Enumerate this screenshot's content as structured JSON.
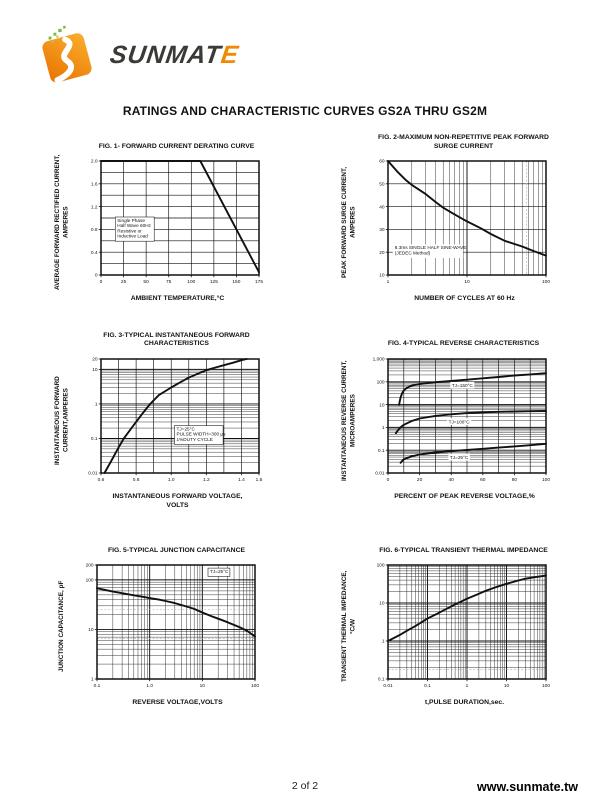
{
  "page": {
    "title": "RATINGS AND CHARACTERISTIC CURVES GS2A THRU GS2M",
    "page_number": "2 of 2",
    "website": "www.sunmate.tw"
  },
  "logo": {
    "brand_dark": "SUNMAT",
    "brand_accent": "E"
  },
  "colors": {
    "ink": "#111111",
    "logo_orange": "#F6941D",
    "logo_orange_dark": "#E87200",
    "logo_green": "#7DB93C",
    "logo_text": "#3B3A35",
    "wordmark_accent": "#F08A00"
  },
  "chart_data": [
    {
      "type": "line",
      "title": "FIG. 1- FORWARD CURRENT DERATING CURVE",
      "xlabel": "AMBIENT TEMPERATURE,°C",
      "ylabel": "AVERAGE FORWARD RECTIFIED CURRENT,\nAMPERES",
      "xscale": "linear",
      "yscale": "linear",
      "xlim": [
        0,
        175
      ],
      "ylim": [
        0,
        2
      ],
      "xstep": 25,
      "ystep": 0.2,
      "xticks": {
        "values": [
          0,
          25,
          50,
          75,
          100,
          125,
          150,
          175
        ],
        "labels": [
          "0",
          "25",
          "50",
          "75",
          "100",
          "125",
          "150",
          "175"
        ]
      },
      "yticks": {
        "values": [
          0,
          0.4,
          0.8,
          1.2,
          1.6,
          2.0
        ],
        "labels": [
          "0",
          "0.4",
          "0.8",
          "1.2",
          "1.6",
          "2.0"
        ]
      },
      "series": [
        {
          "name": "derating-curve",
          "points": [
            [
              0,
              2
            ],
            [
              110,
              2
            ],
            [
              175,
              0.05
            ]
          ]
        }
      ],
      "annotations": [
        {
          "x": 18,
          "y": 1.0,
          "boxed": true,
          "lines": [
            "Single Phase",
            "Half Wave 60Hz",
            "Resistive or",
            "Inductive Load"
          ]
        }
      ]
    },
    {
      "type": "line",
      "title": "FIG. 2-MAXIMUM NON-REPETITIVE PEAK FORWARD\nSURGE CURRENT",
      "xlabel": "NUMBER OF CYCLES AT 60 Hz",
      "ylabel": "PEAK FORWARD SURGE CURRENT,\nAMPERES",
      "xscale": "log",
      "yscale": "linear",
      "xlim": [
        1,
        100
      ],
      "ylim": [
        10,
        60
      ],
      "ystep": 10,
      "xticks": {
        "values": [
          1,
          10,
          100
        ],
        "labels": [
          "1",
          "10",
          "100"
        ]
      },
      "yticks": {
        "values": [
          10,
          20,
          30,
          40,
          50,
          60
        ],
        "labels": [
          "10",
          "20",
          "30",
          "40",
          "50",
          "60"
        ]
      },
      "series": [
        {
          "name": "surge-current",
          "points": [
            [
              1,
              60
            ],
            [
              1.3,
              55.5
            ],
            [
              1.7,
              51.5
            ],
            [
              2,
              49.5
            ],
            [
              3,
              45.5
            ],
            [
              4,
              42
            ],
            [
              5,
              39.5
            ],
            [
              7,
              36.5
            ],
            [
              10,
              33.5
            ],
            [
              15,
              30.5
            ],
            [
              20,
              28
            ],
            [
              30,
              25
            ],
            [
              50,
              22.5
            ],
            [
              70,
              20.5
            ],
            [
              100,
              18.5
            ]
          ]
        }
      ],
      "annotations": [
        {
          "x": 1.22,
          "y": 23,
          "boxed": false,
          "lines": [
            "8.3ms SINGLE HALF SINE-WAVE",
            "(JEDEC Method)"
          ]
        }
      ],
      "ref_lines": [
        {
          "axis": "x",
          "v": 57
        }
      ]
    },
    {
      "type": "line",
      "title": "FIG. 3-TYPICAL INSTANTANEOUS FORWARD\nCHARACTERISTICS",
      "xlabel": "INSTANTANEOUS FORWARD VOLTAGE,\nVOLTS",
      "ylabel": "INSTANTANEOUS FORWARD\nCURRENT,AMPERES",
      "xscale": "linear",
      "yscale": "log",
      "xlim": [
        0.6,
        1.5
      ],
      "ylim": [
        0.01,
        20
      ],
      "xstep": 0.1,
      "xticks": {
        "values": [
          0.6,
          0.8,
          1.0,
          1.2,
          1.4,
          1.5
        ],
        "labels": [
          "0.6",
          "0.8",
          "1.0",
          "1.2",
          "1.4",
          "1.5"
        ]
      },
      "yticks": {
        "values": [
          0.01,
          0.1,
          1,
          10,
          20
        ],
        "labels": [
          "0.01",
          "0.1",
          "1",
          "10",
          "20"
        ]
      },
      "series": [
        {
          "name": "forward-characteristic",
          "points": [
            [
              0.62,
              0.01
            ],
            [
              0.66,
              0.023
            ],
            [
              0.7,
              0.055
            ],
            [
              0.73,
              0.1
            ],
            [
              0.78,
              0.22
            ],
            [
              0.83,
              0.48
            ],
            [
              0.88,
              1.0
            ],
            [
              0.93,
              1.8
            ],
            [
              1.0,
              3.0
            ],
            [
              1.05,
              4.2
            ],
            [
              1.1,
              5.8
            ],
            [
              1.15,
              7.5
            ],
            [
              1.2,
              9.5
            ],
            [
              1.25,
              11.3
            ],
            [
              1.3,
              13.2
            ],
            [
              1.35,
              15.5
            ],
            [
              1.4,
              18.5
            ],
            [
              1.43,
              20
            ]
          ]
        }
      ],
      "annotations": [
        {
          "x": 1.03,
          "y": 0.22,
          "boxed": true,
          "lines": [
            "TJ=25°C",
            "PULSE WIDTH=300 μs",
            "1%DUTY CYCLE"
          ]
        }
      ]
    },
    {
      "type": "line",
      "title": "FIG. 4-TYPICAL REVERSE CHARACTERISTICS",
      "xlabel": "PERCENT OF PEAK REVERSE VOLTAGE,%",
      "ylabel": "INSTANTANEOUS REVERSE CURRENT,\nMICROAMPERES",
      "xscale": "linear",
      "yscale": "log",
      "xlim": [
        0,
        100
      ],
      "ylim": [
        0.01,
        1000
      ],
      "xstep": 10,
      "xticks": {
        "values": [
          0,
          20,
          40,
          60,
          80,
          100
        ],
        "labels": [
          "0",
          "20",
          "40",
          "60",
          "80",
          "100"
        ]
      },
      "yticks": {
        "values": [
          0.01,
          0.1,
          1,
          10,
          100,
          1000
        ],
        "labels": [
          "0.01",
          "0.1",
          "1",
          "10",
          "100",
          "1,000"
        ]
      },
      "series": [
        {
          "name": "TJ=150C",
          "label": {
            "text": "TJ=150°C",
            "x": 47,
            "y": 70
          },
          "points": [
            [
              7,
              10
            ],
            [
              7.5,
              15
            ],
            [
              8,
              21
            ],
            [
              9,
              32
            ],
            [
              10,
              42
            ],
            [
              12,
              55
            ],
            [
              15,
              68
            ],
            [
              20,
              80
            ],
            [
              25,
              89
            ],
            [
              30,
              96
            ],
            [
              40,
              110
            ],
            [
              50,
              124
            ],
            [
              60,
              142
            ],
            [
              70,
              163
            ],
            [
              80,
              188
            ],
            [
              90,
              212
            ],
            [
              100,
              238
            ]
          ]
        },
        {
          "name": "TJ=100C",
          "label": {
            "text": "TJ=100°C",
            "x": 45,
            "y": 1.8
          },
          "points": [
            [
              5,
              0.55
            ],
            [
              6,
              0.72
            ],
            [
              8,
              1.02
            ],
            [
              10,
              1.3
            ],
            [
              15,
              1.9
            ],
            [
              20,
              2.45
            ],
            [
              30,
              3.2
            ],
            [
              40,
              3.75
            ],
            [
              50,
              4.25
            ],
            [
              60,
              4.6
            ],
            [
              70,
              4.85
            ],
            [
              80,
              5.0
            ],
            [
              90,
              5.15
            ],
            [
              100,
              5.25
            ]
          ]
        },
        {
          "name": "TJ=25C",
          "label": {
            "text": "TJ=25°C",
            "x": 45,
            "y": 0.05
          },
          "points": [
            [
              8,
              0.028
            ],
            [
              9,
              0.034
            ],
            [
              10,
              0.04
            ],
            [
              15,
              0.054
            ],
            [
              20,
              0.065
            ],
            [
              30,
              0.079
            ],
            [
              40,
              0.09
            ],
            [
              50,
              0.102
            ],
            [
              60,
              0.115
            ],
            [
              70,
              0.13
            ],
            [
              80,
              0.147
            ],
            [
              90,
              0.166
            ],
            [
              100,
              0.19
            ]
          ]
        }
      ]
    },
    {
      "type": "line",
      "title": "FIG. 5-TYPICAL JUNCTION CAPACITANCE",
      "xlabel": "REVERSE VOLTAGE,VOLTS",
      "ylabel": "JUNCTION CAPACITANCE, pF",
      "xscale": "log",
      "yscale": "log",
      "xlim": [
        0.1,
        100
      ],
      "ylim": [
        1,
        200
      ],
      "xticks": {
        "values": [
          0.1,
          1.0,
          10,
          100
        ],
        "labels": [
          "0.1",
          "1.0",
          "10",
          "100"
        ]
      },
      "yticks": {
        "values": [
          1,
          10,
          100,
          200
        ],
        "labels": [
          "1",
          "10",
          "100",
          "200"
        ]
      },
      "series": [
        {
          "name": "junction-capacitance",
          "points": [
            [
              0.1,
              68
            ],
            [
              0.15,
              62
            ],
            [
              0.2,
              58
            ],
            [
              0.3,
              54
            ],
            [
              0.5,
              49
            ],
            [
              0.7,
              46
            ],
            [
              1,
              43
            ],
            [
              1.5,
              40
            ],
            [
              2,
              37.5
            ],
            [
              3,
              34
            ],
            [
              5,
              29
            ],
            [
              7,
              26
            ],
            [
              10,
              22
            ],
            [
              15,
              18.5
            ],
            [
              20,
              16.5
            ],
            [
              30,
              14
            ],
            [
              50,
              11.2
            ],
            [
              70,
              9.5
            ],
            [
              100,
              7.2
            ]
          ]
        }
      ],
      "annotations": [
        {
          "x": 14,
          "y": 165,
          "boxed": true,
          "lines": [
            "TJ=25°C"
          ]
        }
      ],
      "ref_lines": [
        {
          "axis": "y",
          "v": 25
        },
        {
          "axis": "y",
          "v": 6.5
        }
      ]
    },
    {
      "type": "line",
      "title": "FIG. 6-TYPICAL TRANSIENT THERMAL IMPEDANCE",
      "xlabel": "t,PULSE DURATION,sec.",
      "ylabel": "TRANSIENT THERMAL IMPEDANCE,\n°C/W",
      "xscale": "log",
      "yscale": "log",
      "xlim": [
        0.01,
        100
      ],
      "ylim": [
        0.1,
        100
      ],
      "xticks": {
        "values": [
          0.01,
          0.1,
          1,
          10,
          100
        ],
        "labels": [
          "0.01",
          "0.1",
          "1",
          "10",
          "100"
        ]
      },
      "yticks": {
        "values": [
          0.1,
          1,
          10,
          100
        ],
        "labels": [
          "0.1",
          "1",
          "10",
          "100"
        ]
      },
      "series": [
        {
          "name": "thermal-impedance",
          "points": [
            [
              0.01,
              1
            ],
            [
              0.02,
              1.45
            ],
            [
              0.03,
              1.85
            ],
            [
              0.05,
              2.5
            ],
            [
              0.07,
              3.1
            ],
            [
              0.1,
              3.9
            ],
            [
              0.2,
              5.6
            ],
            [
              0.3,
              7
            ],
            [
              0.5,
              9.2
            ],
            [
              0.7,
              10.8
            ],
            [
              1,
              13
            ],
            [
              2,
              17.5
            ],
            [
              3,
              21
            ],
            [
              5,
              25.5
            ],
            [
              7,
              28.5
            ],
            [
              10,
              32
            ],
            [
              20,
              39
            ],
            [
              30,
              43.5
            ],
            [
              50,
              47.5
            ],
            [
              70,
              50
            ],
            [
              100,
              52.5
            ]
          ]
        }
      ],
      "ref_lines": [
        {
          "axis": "y",
          "v": 0.18
        }
      ]
    }
  ]
}
